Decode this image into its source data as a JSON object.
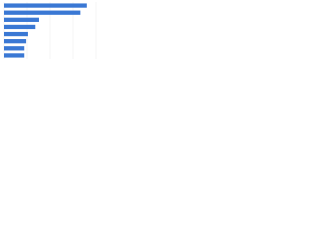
{
  "chart_data": {
    "type": "hbar",
    "categories": [
      null,
      null,
      null,
      null,
      null,
      null,
      null,
      null
    ],
    "values": [
      90,
      83,
      38,
      34,
      26,
      24,
      22,
      22
    ],
    "color": "#3a78d4",
    "xlim": [
      0,
      100
    ],
    "xticks": [
      0,
      25,
      50,
      75,
      100
    ],
    "grid": true
  }
}
